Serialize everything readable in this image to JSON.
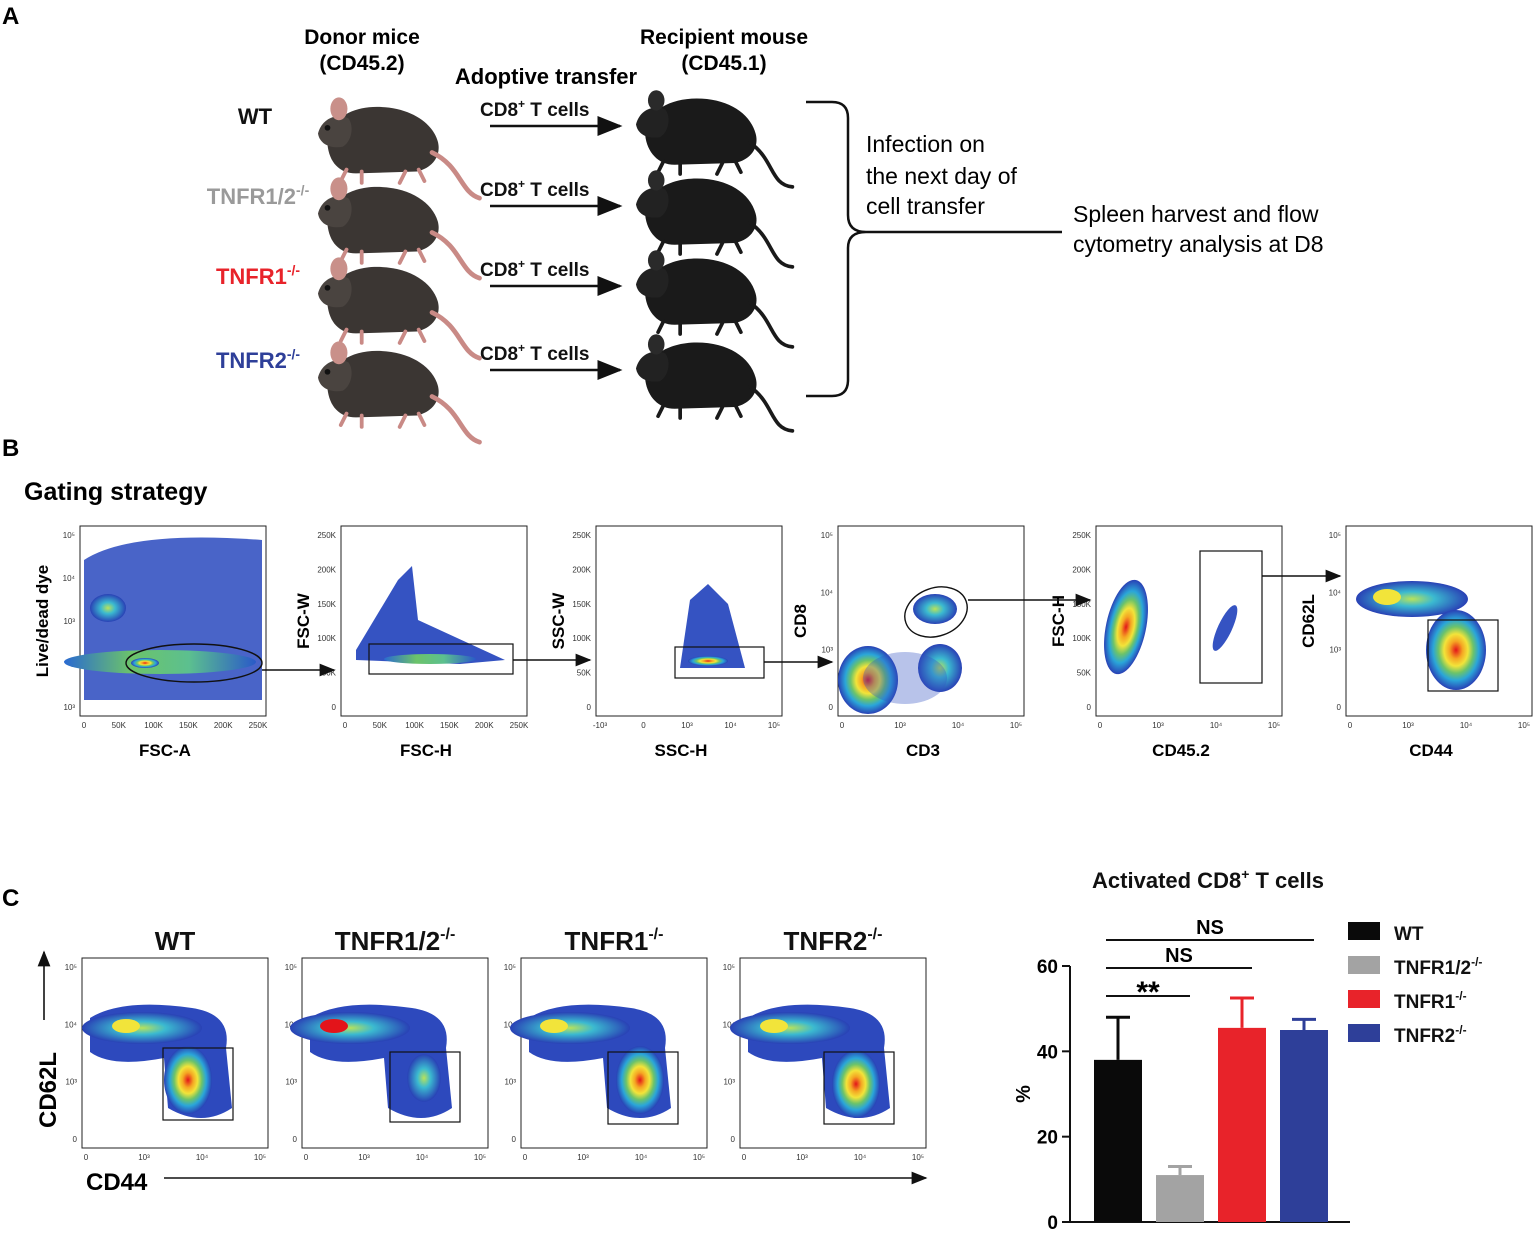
{
  "panel_a": {
    "label": "A",
    "donor_title": "Donor mice",
    "donor_sub": "(CD45.2)",
    "recipient_title": "Recipient mouse",
    "recipient_sub": "(CD45.1)",
    "transfer_title": "Adoptive transfer",
    "groups": [
      {
        "name": "WT",
        "sup": "",
        "color": "#111111"
      },
      {
        "name": "TNFR1/2",
        "sup": "-/-",
        "color": "#9a9a9a"
      },
      {
        "name": "TNFR1",
        "sup": "-/-",
        "color": "#e8232a"
      },
      {
        "name": "TNFR2",
        "sup": "-/-",
        "color": "#2e3f99"
      }
    ],
    "arrow_label": "CD8",
    "arrow_label_sup": "+",
    "arrow_label_tail": " T cells",
    "infection_lines": [
      "Infection on",
      "the next day of",
      "cell transfer"
    ],
    "analysis_lines": [
      "Spleen harvest and flow",
      "cytometry analysis at D8"
    ]
  },
  "panel_b": {
    "label": "B",
    "title": "Gating strategy",
    "plots": [
      {
        "ylabel": "Live/dead dye",
        "xlabel": "FSC-A",
        "xticks": [
          "0",
          "50K",
          "100K",
          "150K",
          "200K",
          "250K"
        ],
        "yticks": [
          "10⁵",
          "10⁴",
          "10³",
          "0",
          "10³"
        ]
      },
      {
        "ylabel": "FSC-W",
        "xlabel": "FSC-H",
        "xticks": [
          "0",
          "50K",
          "100K",
          "150K",
          "200K",
          "250K"
        ],
        "yticks": [
          "250K",
          "200K",
          "150K",
          "100K",
          "50K",
          "0"
        ]
      },
      {
        "ylabel": "SSC-W",
        "xlabel": "SSC-H",
        "xticks": [
          "-10³",
          "0",
          "10³",
          "10⁴",
          "10⁵"
        ],
        "yticks": [
          "250K",
          "200K",
          "150K",
          "100K",
          "50K",
          "0"
        ]
      },
      {
        "ylabel": "CD8",
        "xlabel": "CD3",
        "xticks": [
          "0",
          "10³",
          "10⁴",
          "10⁵"
        ],
        "yticks": [
          "10⁵",
          "10⁴",
          "10³",
          "0"
        ]
      },
      {
        "ylabel": "FSC-H",
        "xlabel": "CD45.2",
        "xticks": [
          "0",
          "10³",
          "10⁴",
          "10⁵"
        ],
        "yticks": [
          "250K",
          "200K",
          "150K",
          "100K",
          "50K",
          "0"
        ]
      },
      {
        "ylabel": "CD62L",
        "xlabel": "CD44",
        "xticks": [
          "0",
          "10³",
          "10⁴",
          "10⁵"
        ],
        "yticks": [
          "10⁵",
          "10⁴",
          "10³",
          "0"
        ]
      }
    ]
  },
  "panel_c": {
    "label": "C",
    "plot_titles": [
      {
        "name": "WT",
        "sup": ""
      },
      {
        "name": "TNFR1/2",
        "sup": "-/-"
      },
      {
        "name": "TNFR1",
        "sup": "-/-"
      },
      {
        "name": "TNFR2",
        "sup": "-/-"
      }
    ],
    "ylabel": "CD62L",
    "xlabel": "CD44",
    "xticks": [
      "0",
      "10³",
      "10⁴",
      "10⁵"
    ],
    "yticks": [
      "10⁵",
      "10⁴",
      "10³",
      "0"
    ]
  },
  "chart_data": {
    "type": "bar",
    "title": "Activated CD8",
    "title_sup": "+",
    "title_tail": " T cells",
    "ylabel": "%",
    "ylim": [
      0,
      60
    ],
    "yticks": [
      0,
      20,
      40,
      60
    ],
    "categories": [
      "WT",
      "TNFR1/2-/-",
      "TNFR1-/-",
      "TNFR2-/-"
    ],
    "values": [
      38,
      11,
      45.5,
      45
    ],
    "errors": [
      10,
      2,
      7,
      2.5
    ],
    "colors": [
      "#0a0a0a",
      "#a3a3a3",
      "#e8232a",
      "#2e3f99"
    ],
    "legend": [
      {
        "name": "WT",
        "sup": ""
      },
      {
        "name": "TNFR1/2",
        "sup": "-/-"
      },
      {
        "name": "TNFR1",
        "sup": "-/-"
      },
      {
        "name": "TNFR2",
        "sup": "-/-"
      }
    ],
    "significance": [
      {
        "from": 0,
        "to": 1,
        "text": "**"
      },
      {
        "from": 0,
        "to": 2,
        "text": "NS"
      },
      {
        "from": 0,
        "to": 3,
        "text": "NS"
      }
    ]
  }
}
